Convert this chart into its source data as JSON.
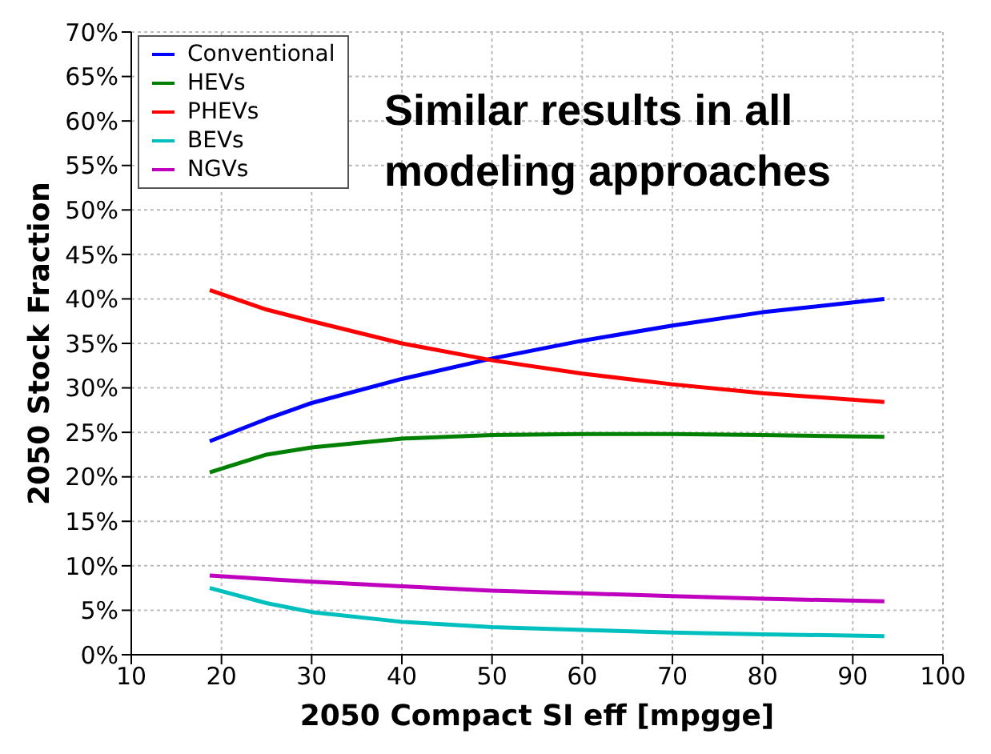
{
  "chart_data": {
    "type": "line",
    "xlabel": "2050 Compact SI eff [mpgge]",
    "ylabel": "2050 Stock Fraction",
    "annotations": [
      "Similar results in all modeling approaches"
    ],
    "x": [
      18.7,
      25,
      30,
      40,
      50,
      60,
      70,
      80,
      93.5
    ],
    "series": [
      {
        "name": "Conventional",
        "color": "#0000ff",
        "values": [
          24,
          26.5,
          28.3,
          31,
          33.3,
          35.3,
          37,
          38.5,
          40
        ]
      },
      {
        "name": "HEVs",
        "color": "#008000",
        "values": [
          20.5,
          22.5,
          23.3,
          24.3,
          24.7,
          24.8,
          24.8,
          24.7,
          24.5
        ]
      },
      {
        "name": "PHEVs",
        "color": "#ff0000",
        "values": [
          41,
          38.8,
          37.5,
          35,
          33.1,
          31.6,
          30.4,
          29.4,
          28.4
        ]
      },
      {
        "name": "BEVs",
        "color": "#00bfbf",
        "values": [
          7.5,
          5.8,
          4.8,
          3.7,
          3.1,
          2.8,
          2.5,
          2.3,
          2.1
        ]
      },
      {
        "name": "NGVs",
        "color": "#bf00bf",
        "values": [
          8.9,
          8.5,
          8.2,
          7.7,
          7.2,
          6.9,
          6.6,
          6.3,
          6.0
        ]
      }
    ],
    "xlim": [
      10,
      100
    ],
    "xticks": [
      10,
      20,
      30,
      40,
      50,
      60,
      70,
      80,
      90,
      100
    ],
    "ylim": [
      0,
      70
    ],
    "yticks": [
      {
        "value": 0,
        "label": "0%"
      },
      {
        "value": 5,
        "label": "5%"
      },
      {
        "value": 10,
        "label": "10%"
      },
      {
        "value": 15,
        "label": "15%"
      },
      {
        "value": 20,
        "label": "20%"
      },
      {
        "value": 25,
        "label": "25%"
      },
      {
        "value": 30,
        "label": "30%"
      },
      {
        "value": 35,
        "label": "35%"
      },
      {
        "value": 40,
        "label": "40%"
      },
      {
        "value": 45,
        "label": "45%"
      },
      {
        "value": 50,
        "label": "50%"
      },
      {
        "value": 55,
        "label": "55%"
      },
      {
        "value": 60,
        "label": "60%"
      },
      {
        "value": 65,
        "label": "65%"
      },
      {
        "value": 70,
        "label": "70%"
      }
    ],
    "grid": true,
    "legend": "top left",
    "marker": "none",
    "line_style": "solid"
  }
}
